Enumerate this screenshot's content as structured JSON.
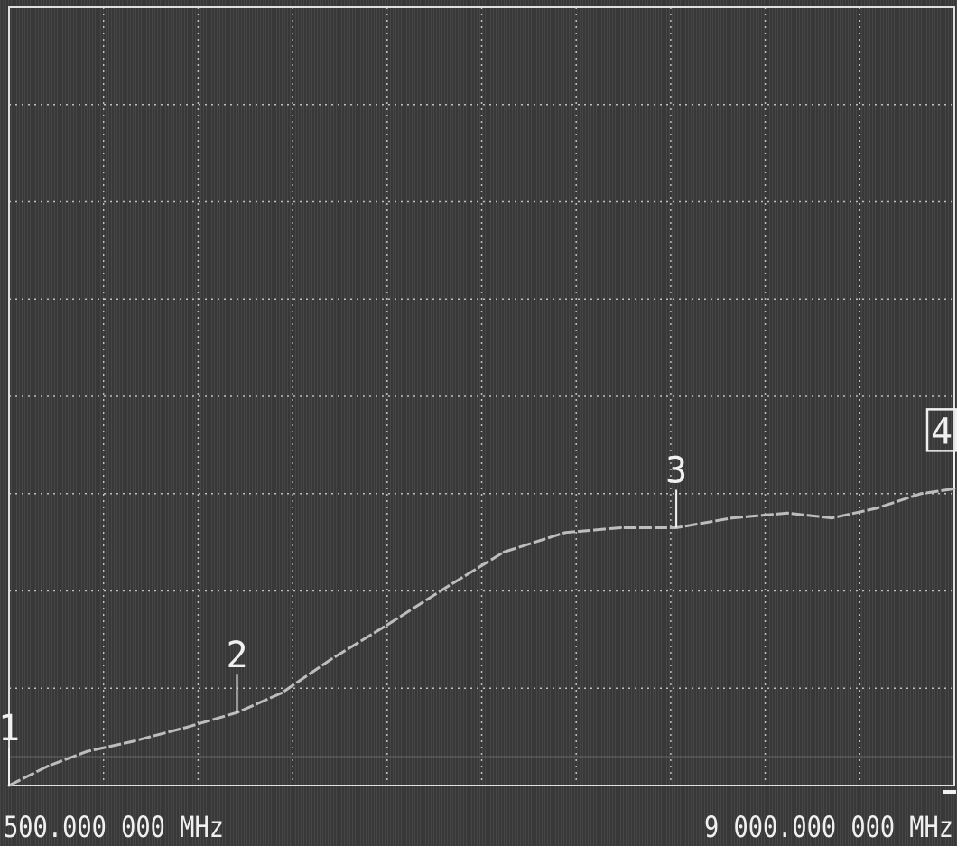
{
  "chart_data": {
    "type": "line",
    "x_unit": "MHz",
    "xlim": [
      500,
      9000
    ],
    "ylim": [
      0,
      8
    ],
    "grid": true,
    "x_start_label": "500.000 000 MHz",
    "x_stop_label": "9 000.000 000 MHz",
    "series": [
      {
        "values": [
          [
            500,
            0.0
          ],
          [
            850,
            0.2
          ],
          [
            1200,
            0.35
          ],
          [
            1600,
            0.45
          ],
          [
            2100,
            0.6
          ],
          [
            2550,
            0.75
          ],
          [
            2950,
            0.95
          ],
          [
            3400,
            1.3
          ],
          [
            3900,
            1.65
          ],
          [
            4450,
            2.05
          ],
          [
            4950,
            2.4
          ],
          [
            5500,
            2.6
          ],
          [
            6000,
            2.65
          ],
          [
            6500,
            2.65
          ],
          [
            7000,
            2.75
          ],
          [
            7500,
            2.8
          ],
          [
            7900,
            2.75
          ],
          [
            8300,
            2.85
          ],
          [
            8700,
            3.0
          ],
          [
            9000,
            3.05
          ]
        ]
      }
    ],
    "markers": [
      {
        "label": "1",
        "x": 500,
        "y": 0.0,
        "active": false
      },
      {
        "label": "2",
        "x": 2550,
        "y": 0.75,
        "active": false
      },
      {
        "label": "3",
        "x": 6500,
        "y": 2.65,
        "active": false
      },
      {
        "label": "4",
        "x": 9000,
        "y": 3.05,
        "active": true
      }
    ],
    "colors": {
      "background": "#3c3c3c",
      "trace": "#bdbdbd",
      "grid": "#e0e0e0",
      "text": "#f0f0f0"
    }
  }
}
